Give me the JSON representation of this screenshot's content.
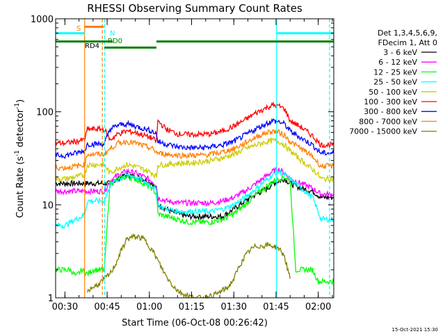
{
  "chart_data": {
    "type": "line",
    "title": "RHESSI Observing Summary Count Rates",
    "xlabel": "Start Time (06-Oct-08 00:26:42)",
    "ylabel": "Count Rate (s⁻¹ detector⁻¹)",
    "ylabel_parts": {
      "pre": "Count Rate (s",
      "sup": "-1",
      "mid": " detector",
      "sup2": "-1",
      "post": ")"
    },
    "yscale": "log",
    "xlim": [
      26.7,
      125.5
    ],
    "ylim": [
      1,
      1000
    ],
    "x_ticks": [
      {
        "v": 30,
        "label": "00:30"
      },
      {
        "v": 45,
        "label": "00:45"
      },
      {
        "v": 60,
        "label": "01:00"
      },
      {
        "v": 75,
        "label": "01:15"
      },
      {
        "v": 90,
        "label": "01:30"
      },
      {
        "v": 105,
        "label": "01:45"
      },
      {
        "v": 120,
        "label": "02:00"
      }
    ],
    "y_ticks": [
      {
        "v": 1,
        "label": "1"
      },
      {
        "v": 10,
        "label": "10"
      },
      {
        "v": 100,
        "label": "100"
      },
      {
        "v": 1000,
        "label": "1000"
      }
    ],
    "legend_header": [
      "Det 1,3,4,5,6,9,",
      "FDecim 1, Att 0"
    ],
    "legend_position": "right",
    "series": [
      {
        "name": "3 - 6 keV",
        "color": "#000000",
        "x": [
          26.7,
          30,
          35,
          38,
          39,
          40,
          44,
          46,
          49,
          52,
          55,
          58,
          61,
          62.5,
          63,
          66,
          70,
          74,
          78,
          82,
          86,
          90,
          94,
          98,
          102,
          104,
          106,
          108,
          110,
          114,
          118,
          121,
          122,
          123,
          124,
          125.5
        ],
        "y": [
          17,
          17,
          17,
          17,
          17,
          17,
          17,
          17,
          19,
          21,
          20,
          19,
          17,
          15,
          10,
          9,
          8,
          7.5,
          7.5,
          7.5,
          7.5,
          9,
          11,
          13,
          15,
          17,
          18,
          19,
          17,
          15,
          14,
          12,
          12,
          12,
          12,
          12
        ]
      },
      {
        "name": "6 - 12 keV",
        "color": "#ff00ff",
        "x": [
          26.7,
          38,
          40,
          44,
          46,
          49,
          52,
          55,
          58,
          61,
          62.5,
          63,
          66,
          70,
          74,
          78,
          82,
          86,
          90,
          94,
          98,
          102,
          104,
          106,
          108,
          110,
          114,
          118,
          121,
          122,
          123,
          124,
          125.5
        ],
        "y": [
          14,
          14,
          14,
          14,
          18,
          21,
          23,
          22,
          20,
          18,
          16,
          12,
          11,
          10.5,
          10.5,
          10.5,
          10.5,
          11,
          12,
          14,
          17,
          21,
          23,
          24,
          22,
          19,
          17,
          15,
          13,
          13,
          13,
          13,
          13
        ]
      },
      {
        "name": "12 - 25 keV",
        "color": "#00ff00",
        "x": [
          26.7,
          28,
          30,
          32,
          34,
          36,
          38,
          40,
          42,
          44,
          46,
          49,
          52,
          55,
          58,
          61,
          62.5,
          63,
          66,
          70,
          74,
          78,
          82,
          86,
          90,
          94,
          98,
          102,
          104,
          106,
          108,
          110,
          112,
          114,
          116,
          118,
          120,
          121,
          122,
          123,
          124,
          125.5
        ],
        "y": [
          2,
          2,
          2,
          2,
          1.7,
          2,
          1.8,
          2,
          2,
          2,
          17,
          19,
          20,
          19,
          17,
          15,
          13,
          8,
          7.5,
          7,
          6.5,
          6.5,
          6.5,
          7,
          8,
          10,
          13,
          16,
          18,
          19,
          20,
          18,
          2,
          2,
          2,
          2,
          1.5,
          1.5,
          1.5,
          1.5,
          1.5,
          1.5
        ]
      },
      {
        "name": "25 - 50 keV",
        "color": "#00ffff",
        "x": [
          26.7,
          28,
          30,
          32,
          34,
          36,
          37,
          38,
          40,
          44,
          46,
          49,
          52,
          55,
          58,
          61,
          62.5,
          63,
          66,
          70,
          74,
          78,
          82,
          86,
          90,
          94,
          98,
          102,
          104,
          106,
          108,
          110,
          114,
          118,
          121,
          122,
          123,
          124,
          125.5
        ],
        "y": [
          6,
          6,
          6,
          6.5,
          7,
          7.5,
          8,
          11,
          11,
          11,
          16,
          19,
          21,
          20,
          18,
          16,
          14,
          10,
          9,
          8.5,
          8.5,
          8.5,
          8.5,
          9,
          10,
          12,
          15,
          19,
          21,
          23,
          21,
          19,
          15,
          12,
          7,
          7,
          7,
          7,
          7
        ]
      },
      {
        "name": "50 - 100 keV",
        "color": "#cccc00",
        "x": [
          26.7,
          30,
          34,
          37,
          38,
          40,
          44,
          46,
          49,
          52,
          55,
          58,
          61,
          62.5,
          63,
          66,
          70,
          74,
          78,
          82,
          86,
          90,
          94,
          98,
          102,
          104,
          106,
          108,
          110,
          114,
          118,
          120,
          121,
          122,
          123,
          124,
          125.5
        ],
        "y": [
          19,
          19,
          20,
          21,
          27,
          27,
          27,
          22,
          25,
          27,
          26,
          24,
          22,
          20,
          27,
          27,
          28,
          28,
          29,
          30,
          32,
          35,
          40,
          44,
          48,
          49,
          48,
          44,
          38,
          30,
          24,
          21,
          19,
          19,
          19,
          19,
          19
        ]
      },
      {
        "name": "100 - 300 keV",
        "color": "#ff0000",
        "x": [
          26.7,
          30,
          34,
          37,
          38,
          40,
          44,
          46,
          49,
          52,
          55,
          58,
          61,
          62.5,
          63,
          66,
          70,
          74,
          78,
          82,
          86,
          90,
          94,
          98,
          102,
          104,
          106,
          108,
          110,
          114,
          118,
          120,
          121,
          122,
          123,
          124,
          125.5
        ],
        "y": [
          46,
          46,
          48,
          50,
          65,
          65,
          65,
          50,
          58,
          62,
          60,
          56,
          52,
          48,
          80,
          65,
          58,
          57,
          57,
          58,
          62,
          70,
          82,
          98,
          112,
          118,
          115,
          108,
          80,
          68,
          55,
          47,
          44,
          44,
          44,
          44,
          44
        ]
      },
      {
        "name": "300 - 800 keV",
        "color": "#0000ff",
        "x": [
          26.7,
          30,
          34,
          37,
          38,
          40,
          44,
          46,
          49,
          52,
          55,
          58,
          61,
          62.5,
          63,
          66,
          70,
          74,
          78,
          82,
          86,
          90,
          94,
          98,
          102,
          104,
          106,
          108,
          110,
          114,
          118,
          120,
          121,
          122,
          123,
          124,
          125.5
        ],
        "y": [
          34,
          34,
          36,
          38,
          45,
          45,
          45,
          65,
          72,
          74,
          70,
          66,
          62,
          58,
          48,
          45,
          42,
          41,
          41,
          42,
          44,
          48,
          56,
          66,
          76,
          80,
          78,
          74,
          62,
          52,
          44,
          38,
          36,
          36,
          36,
          36,
          36
        ]
      },
      {
        "name": "800 - 7000 keV",
        "color": "#ff7f00",
        "x": [
          26.7,
          30,
          34,
          37,
          38,
          40,
          44,
          46,
          49,
          52,
          55,
          58,
          61,
          62.5,
          63,
          66,
          70,
          74,
          78,
          82,
          86,
          90,
          94,
          98,
          102,
          104,
          106,
          108,
          110,
          114,
          118,
          120,
          121,
          122,
          123,
          124,
          125.5
        ],
        "y": [
          25,
          25,
          26,
          27,
          35,
          35,
          35,
          40,
          46,
          48,
          46,
          43,
          40,
          37,
          36,
          35,
          34,
          34,
          34,
          35,
          37,
          40,
          46,
          54,
          60,
          62,
          60,
          56,
          48,
          40,
          33,
          28,
          26,
          26,
          26,
          26,
          26
        ]
      },
      {
        "name": "7000 - 15000 keV",
        "color": "#808000",
        "x": [
          38,
          40,
          42,
          44,
          46,
          48,
          50,
          52,
          54,
          56,
          58,
          60,
          62,
          64,
          66,
          68,
          70,
          72,
          74,
          76,
          78,
          80,
          82,
          84,
          86,
          88,
          90,
          92,
          94,
          96,
          98,
          100,
          102,
          104,
          106,
          108,
          110
        ],
        "y": [
          1.2,
          1.3,
          1.4,
          1.6,
          1.8,
          2.3,
          3.2,
          4.3,
          4.5,
          4.5,
          4.3,
          3.6,
          2.9,
          2.2,
          1.7,
          1.4,
          1.2,
          1.1,
          1.05,
          1.0,
          1.0,
          1.0,
          1.05,
          1.1,
          1.2,
          1.3,
          1.6,
          2.2,
          2.8,
          3.3,
          3.6,
          3.6,
          3.7,
          3.6,
          3.4,
          2.8,
          1.6
        ]
      }
    ],
    "annotations": [
      {
        "label": "S",
        "color": "#ff7f00"
      },
      {
        "label": "N",
        "color": "#00ffff"
      },
      {
        "label": "RD0",
        "color": "#008000"
      },
      {
        "label": "RD4",
        "color": "#008000"
      }
    ],
    "flag_bars": [
      {
        "color": "#00ffff",
        "y": 700,
        "x0": 26.7,
        "x1": 37.0
      },
      {
        "color": "#00ffff",
        "y": 700,
        "x0": 105.2,
        "x1": 125.5
      },
      {
        "color": "#ff7f00",
        "y": 820,
        "x0": 37.0,
        "x1": 43.8
      },
      {
        "color": "#008000",
        "y": 570,
        "x0": 26.7,
        "x1": 47.0
      },
      {
        "color": "#008000",
        "y": 570,
        "x0": 62.5,
        "x1": 125.5
      },
      {
        "color": "#008000",
        "y": 490,
        "x0": 44.0,
        "x1": 62.5
      }
    ],
    "vertical_markers": [
      {
        "x": 37.0,
        "color": "#ff7f00",
        "dashed": false
      },
      {
        "x": 43.3,
        "color": "#ff7f00",
        "dashed": true
      },
      {
        "x": 44.1,
        "color": "#00ffff",
        "dashed": true
      },
      {
        "x": 105.2,
        "color": "#00ffff",
        "dashed": false
      },
      {
        "x": 124.0,
        "color": "#00ffff",
        "dashed": true
      }
    ],
    "footer": "15-Oct-2021 15:30"
  }
}
